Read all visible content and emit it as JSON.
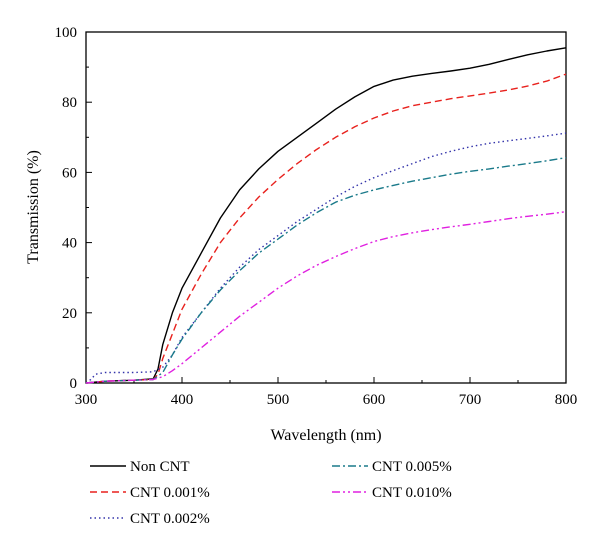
{
  "chart_data": {
    "type": "line",
    "xlabel": "Wavelength (nm)",
    "ylabel": "Transmission (%)",
    "xlim": [
      300,
      800
    ],
    "ylim": [
      0,
      100
    ],
    "x_ticks": [
      300,
      400,
      500,
      600,
      700,
      800
    ],
    "y_ticks": [
      0,
      20,
      40,
      60,
      80,
      100
    ],
    "grid": false,
    "legend_position": "bottom",
    "series": [
      {
        "name": "Non CNT",
        "color": "#000000",
        "dash": "solid",
        "x": [
          300,
          320,
          350,
          370,
          375,
          380,
          390,
          400,
          420,
          440,
          460,
          480,
          500,
          520,
          540,
          560,
          580,
          600,
          620,
          640,
          660,
          680,
          700,
          720,
          740,
          760,
          780,
          800
        ],
        "y": [
          0,
          0.5,
          0.8,
          1.2,
          4,
          11,
          20,
          27,
          37,
          47,
          55,
          61,
          66,
          70,
          74,
          78,
          81.5,
          84.5,
          86.3,
          87.4,
          88.2,
          88.9,
          89.7,
          90.8,
          92.2,
          93.5,
          94.6,
          95.5
        ]
      },
      {
        "name": "CNT 0.001%",
        "color": "#e8211d",
        "dash": "dashed",
        "x": [
          300,
          320,
          350,
          370,
          375,
          380,
          390,
          400,
          420,
          440,
          460,
          480,
          500,
          520,
          540,
          560,
          580,
          600,
          620,
          640,
          660,
          680,
          700,
          720,
          740,
          760,
          780,
          800
        ],
        "y": [
          0,
          0.5,
          0.8,
          1.0,
          2.5,
          7,
          14,
          21,
          31,
          40,
          47,
          53,
          58,
          62.5,
          66.5,
          70,
          73,
          75.5,
          77.5,
          79,
          80,
          81,
          81.8,
          82.6,
          83.5,
          84.6,
          86,
          88
        ]
      },
      {
        "name": "CNT 0.002%",
        "color": "#3333aa",
        "dash": "dotted",
        "x": [
          300,
          305,
          310,
          320,
          350,
          370,
          380,
          390,
          400,
          420,
          440,
          460,
          480,
          500,
          520,
          540,
          560,
          580,
          600,
          620,
          640,
          660,
          680,
          700,
          720,
          740,
          760,
          780,
          800
        ],
        "y": [
          0,
          1.0,
          2.5,
          3.0,
          3.0,
          3.2,
          4.5,
          8,
          13,
          20,
          27,
          33,
          38,
          42,
          46,
          49.5,
          53,
          56,
          58.5,
          60.5,
          62.5,
          64.5,
          66,
          67.3,
          68.3,
          69,
          69.7,
          70.4,
          71.2
        ]
      },
      {
        "name": "CNT 0.005%",
        "color": "#1a7a8a",
        "dash": "dashdot",
        "x": [
          300,
          320,
          350,
          370,
          380,
          390,
          400,
          420,
          440,
          460,
          480,
          500,
          520,
          540,
          560,
          580,
          600,
          620,
          640,
          660,
          680,
          700,
          720,
          740,
          760,
          780,
          800
        ],
        "y": [
          0,
          0.5,
          0.8,
          1.0,
          3,
          8,
          12.5,
          20,
          26.5,
          32,
          37,
          41,
          45,
          48.5,
          51.5,
          53.5,
          55,
          56.3,
          57.5,
          58.5,
          59.5,
          60.3,
          61,
          61.8,
          62.5,
          63.3,
          64.2
        ]
      },
      {
        "name": "CNT 0.010%",
        "color": "#e020e0",
        "dash": "dashdotdot",
        "x": [
          300,
          320,
          350,
          370,
          380,
          390,
          400,
          420,
          440,
          460,
          480,
          500,
          520,
          540,
          560,
          580,
          600,
          620,
          640,
          660,
          680,
          700,
          720,
          740,
          760,
          780,
          800
        ],
        "y": [
          0,
          0.5,
          0.8,
          1.0,
          1.8,
          3.5,
          5.5,
          10,
          14.5,
          19,
          23,
          27,
          30.5,
          33.5,
          36,
          38.3,
          40.3,
          41.7,
          42.8,
          43.7,
          44.5,
          45.2,
          46,
          46.8,
          47.5,
          48.1,
          48.8
        ]
      }
    ]
  }
}
